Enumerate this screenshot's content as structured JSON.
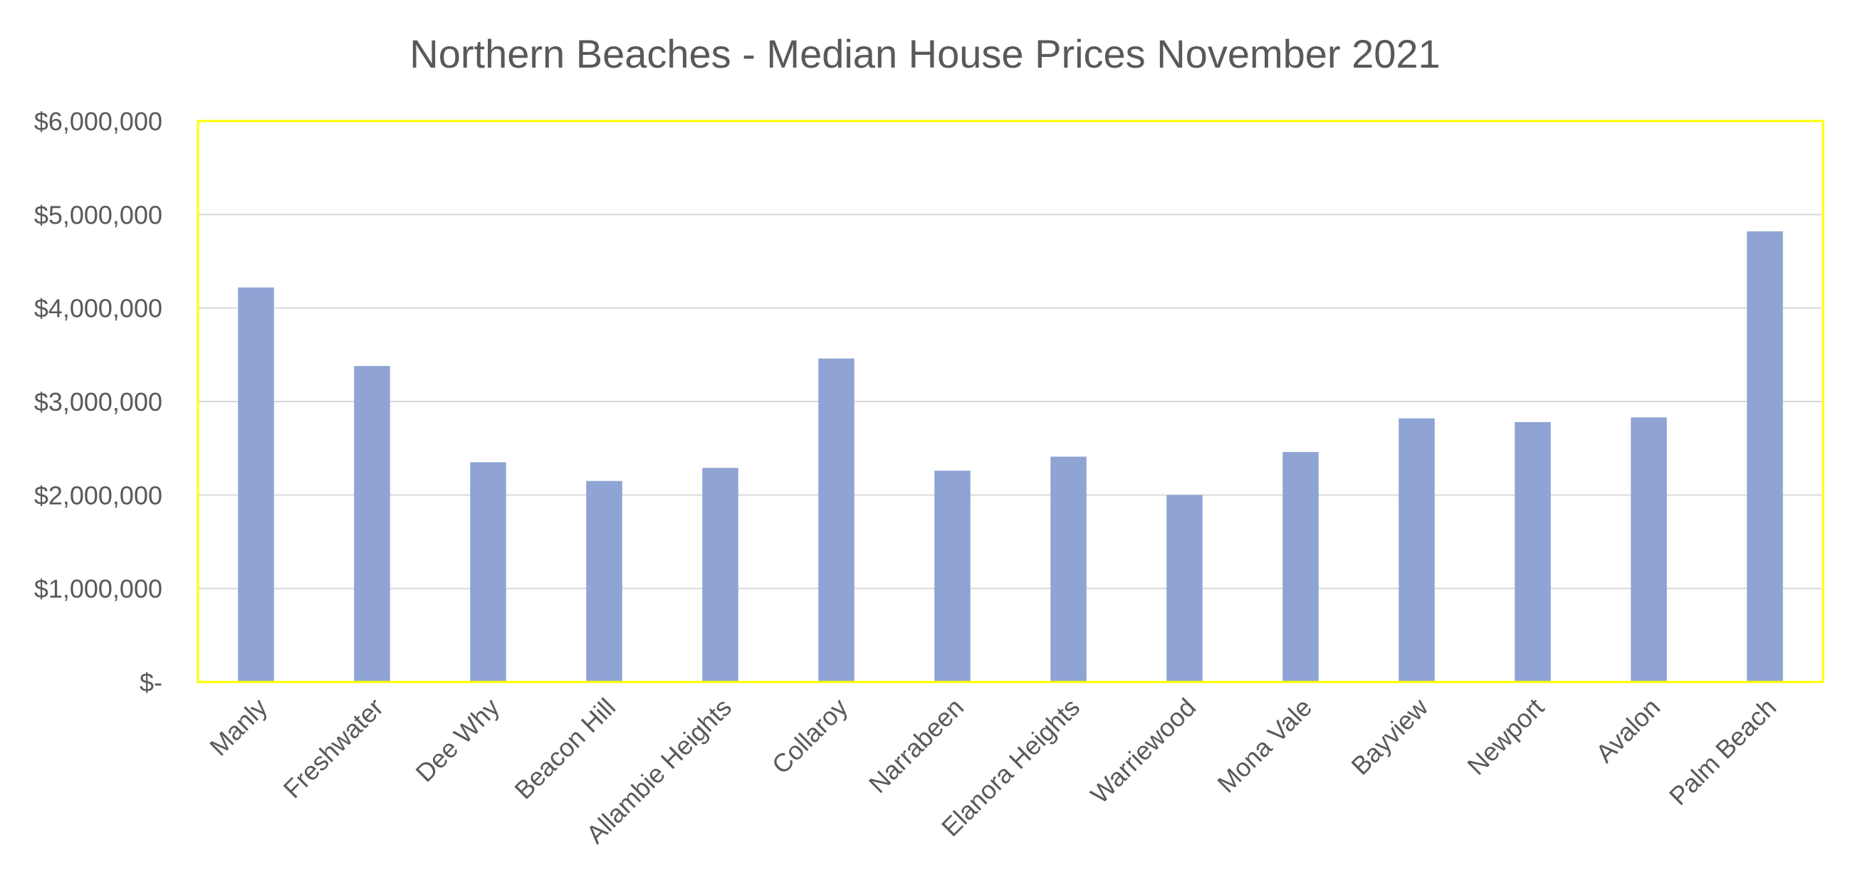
{
  "chart_data": {
    "type": "bar",
    "title": "Northern Beaches  - Median House Prices November 2021",
    "xlabel": "",
    "ylabel": "",
    "categories": [
      "Manly",
      "Freshwater",
      "Dee Why",
      "Beacon Hill",
      "Allambie Heights",
      "Collaroy",
      "Narrabeen",
      "Elanora Heights",
      "Warriewood",
      "Mona Vale",
      "Bayview",
      "Newport",
      "Avalon",
      "Palm Beach"
    ],
    "values": [
      4220000,
      3380000,
      2350000,
      2150000,
      2290000,
      3460000,
      2260000,
      2410000,
      2000000,
      2460000,
      2820000,
      2780000,
      2830000,
      4820000
    ],
    "ylim": [
      0,
      6000000
    ],
    "yticks": [
      0,
      1000000,
      2000000,
      3000000,
      4000000,
      5000000,
      6000000
    ],
    "ytick_labels": [
      "$-",
      "$1,000,000",
      "$2,000,000",
      "$3,000,000",
      "$4,000,000",
      "$5,000,000",
      "$6,000,000"
    ],
    "grid": true,
    "legend": "none",
    "bar_color": "#8fa4d4",
    "plot_border_color": "#ffff00"
  }
}
